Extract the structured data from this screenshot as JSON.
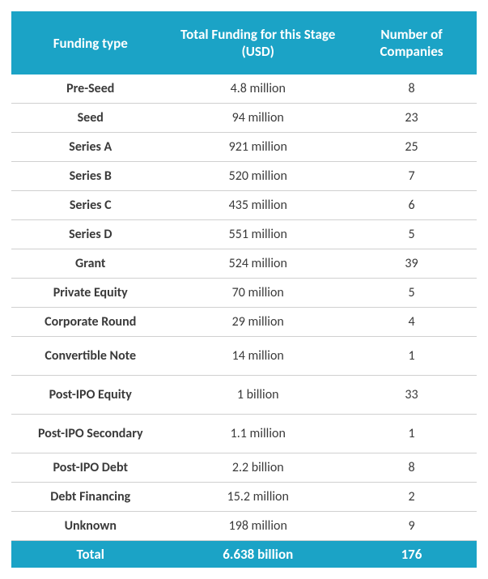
{
  "table": {
    "columns": [
      {
        "label": "Funding type"
      },
      {
        "label": "Total Funding for this Stage (USD)"
      },
      {
        "label": "Number of Companies"
      }
    ],
    "rows": [
      {
        "type": "Pre-Seed",
        "funding": "4.8 million",
        "companies": "8",
        "tall": false
      },
      {
        "type": "Seed",
        "funding": "94 million",
        "companies": "23",
        "tall": false
      },
      {
        "type": "Series A",
        "funding": "921 million",
        "companies": "25",
        "tall": false
      },
      {
        "type": "Series B",
        "funding": "520 million",
        "companies": "7",
        "tall": false
      },
      {
        "type": "Series C",
        "funding": "435 million",
        "companies": "6",
        "tall": false
      },
      {
        "type": "Series D",
        "funding": "551 million",
        "companies": "5",
        "tall": false
      },
      {
        "type": "Grant",
        "funding": "524 million",
        "companies": "39",
        "tall": false
      },
      {
        "type": "Private Equity",
        "funding": "70 million",
        "companies": "5",
        "tall": false
      },
      {
        "type": "Corporate Round",
        "funding": "29 million",
        "companies": "4",
        "tall": false
      },
      {
        "type": "Convertible Note",
        "funding": "14 million",
        "companies": "1",
        "tall": true
      },
      {
        "type": "Post-IPO Equity",
        "funding": "1 billion",
        "companies": "33",
        "tall": true
      },
      {
        "type": "Post-IPO Secondary",
        "funding": "1.1 million",
        "companies": "1",
        "tall": true
      },
      {
        "type": "Post-IPO Debt",
        "funding": "2.2 billion",
        "companies": "8",
        "tall": false
      },
      {
        "type": "Debt Financing",
        "funding": "15.2 million",
        "companies": "2",
        "tall": false
      },
      {
        "type": "Unknown",
        "funding": "198 million",
        "companies": "9",
        "tall": false
      }
    ],
    "total": {
      "label": "Total",
      "funding": "6.638 billion",
      "companies": "176"
    }
  },
  "style": {
    "header_bg": "#1ba3c6",
    "header_fg": "#ffffff",
    "row_border": "#d0d0d0",
    "text_color": "#3a3a3a",
    "total_bg": "#1ba3c6",
    "total_fg": "#ffffff",
    "body_bg": "#ffffff",
    "header_fontsize": 17,
    "data_fontsize": 16,
    "total_fontsize": 17,
    "col_widths": [
      "34%",
      "38%",
      "28%"
    ]
  }
}
